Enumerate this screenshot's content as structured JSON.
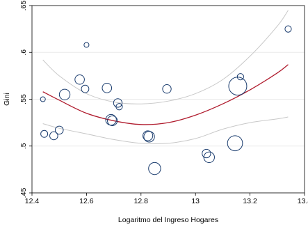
{
  "chart_data": {
    "type": "scatter",
    "xlabel": "Logaritmo del Ingreso Hogares",
    "ylabel": "Gini",
    "xlim": [
      12.4,
      13.4
    ],
    "ylim": [
      0.45,
      0.65
    ],
    "x_ticks": [
      12.4,
      12.6,
      12.8,
      13,
      13.2,
      13.4
    ],
    "x_tick_labels": [
      "12.4",
      "12.6",
      "12.8",
      "13",
      "13.2",
      "13.4"
    ],
    "y_ticks": [
      0.45,
      0.5,
      0.55,
      0.6,
      0.65
    ],
    "y_tick_labels": [
      ".45",
      ".5",
      ".55",
      ".6",
      ".65"
    ],
    "grid": "horizontal",
    "marker": "hollow circle, size proportional to weight",
    "colors": {
      "points": "#1a3c6e",
      "fit": "#b01c2e",
      "ci": "#c8c8c8",
      "frame": "#000000"
    },
    "points": [
      {
        "x": 12.44,
        "y": 0.55,
        "weight": 1.5
      },
      {
        "x": 12.445,
        "y": 0.513,
        "weight": 3
      },
      {
        "x": 12.48,
        "y": 0.511,
        "weight": 4
      },
      {
        "x": 12.5,
        "y": 0.517,
        "weight": 4
      },
      {
        "x": 12.52,
        "y": 0.555,
        "weight": 7
      },
      {
        "x": 12.575,
        "y": 0.571,
        "weight": 5.5
      },
      {
        "x": 12.595,
        "y": 0.561,
        "weight": 3.5
      },
      {
        "x": 12.6,
        "y": 0.608,
        "weight": 1.5
      },
      {
        "x": 12.675,
        "y": 0.562,
        "weight": 5.5
      },
      {
        "x": 12.69,
        "y": 0.528,
        "weight": 7
      },
      {
        "x": 12.695,
        "y": 0.527,
        "weight": 6
      },
      {
        "x": 12.715,
        "y": 0.546,
        "weight": 4.5
      },
      {
        "x": 12.72,
        "y": 0.542,
        "weight": 2.5
      },
      {
        "x": 12.825,
        "y": 0.511,
        "weight": 6
      },
      {
        "x": 12.83,
        "y": 0.51,
        "weight": 7
      },
      {
        "x": 12.85,
        "y": 0.476,
        "weight": 9
      },
      {
        "x": 12.895,
        "y": 0.561,
        "weight": 4.5
      },
      {
        "x": 13.04,
        "y": 0.492,
        "weight": 4.5
      },
      {
        "x": 13.05,
        "y": 0.488,
        "weight": 7
      },
      {
        "x": 13.145,
        "y": 0.503,
        "weight": 14
      },
      {
        "x": 13.155,
        "y": 0.564,
        "weight": 20
      },
      {
        "x": 13.165,
        "y": 0.574,
        "weight": 2.5
      },
      {
        "x": 13.34,
        "y": 0.625,
        "weight": 2.5
      }
    ],
    "fit_line": {
      "x": [
        12.44,
        12.5,
        12.6,
        12.7,
        12.8,
        12.9,
        13.0,
        13.1,
        13.2,
        13.3,
        13.34
      ],
      "y": [
        0.558,
        0.549,
        0.535,
        0.527,
        0.523,
        0.525,
        0.533,
        0.545,
        0.56,
        0.578,
        0.587
      ]
    },
    "ci_upper": {
      "x": [
        12.44,
        12.5,
        12.6,
        12.7,
        12.8,
        12.9,
        13.0,
        13.1,
        13.2,
        13.3,
        13.34
      ],
      "y": [
        0.592,
        0.575,
        0.556,
        0.547,
        0.545,
        0.548,
        0.556,
        0.571,
        0.596,
        0.628,
        0.645
      ]
    },
    "ci_lower": {
      "x": [
        12.44,
        12.5,
        12.6,
        12.7,
        12.8,
        12.9,
        13.0,
        13.1,
        13.2,
        13.3,
        13.34
      ],
      "y": [
        0.524,
        0.519,
        0.513,
        0.507,
        0.503,
        0.503,
        0.508,
        0.518,
        0.525,
        0.529,
        0.531
      ]
    }
  }
}
